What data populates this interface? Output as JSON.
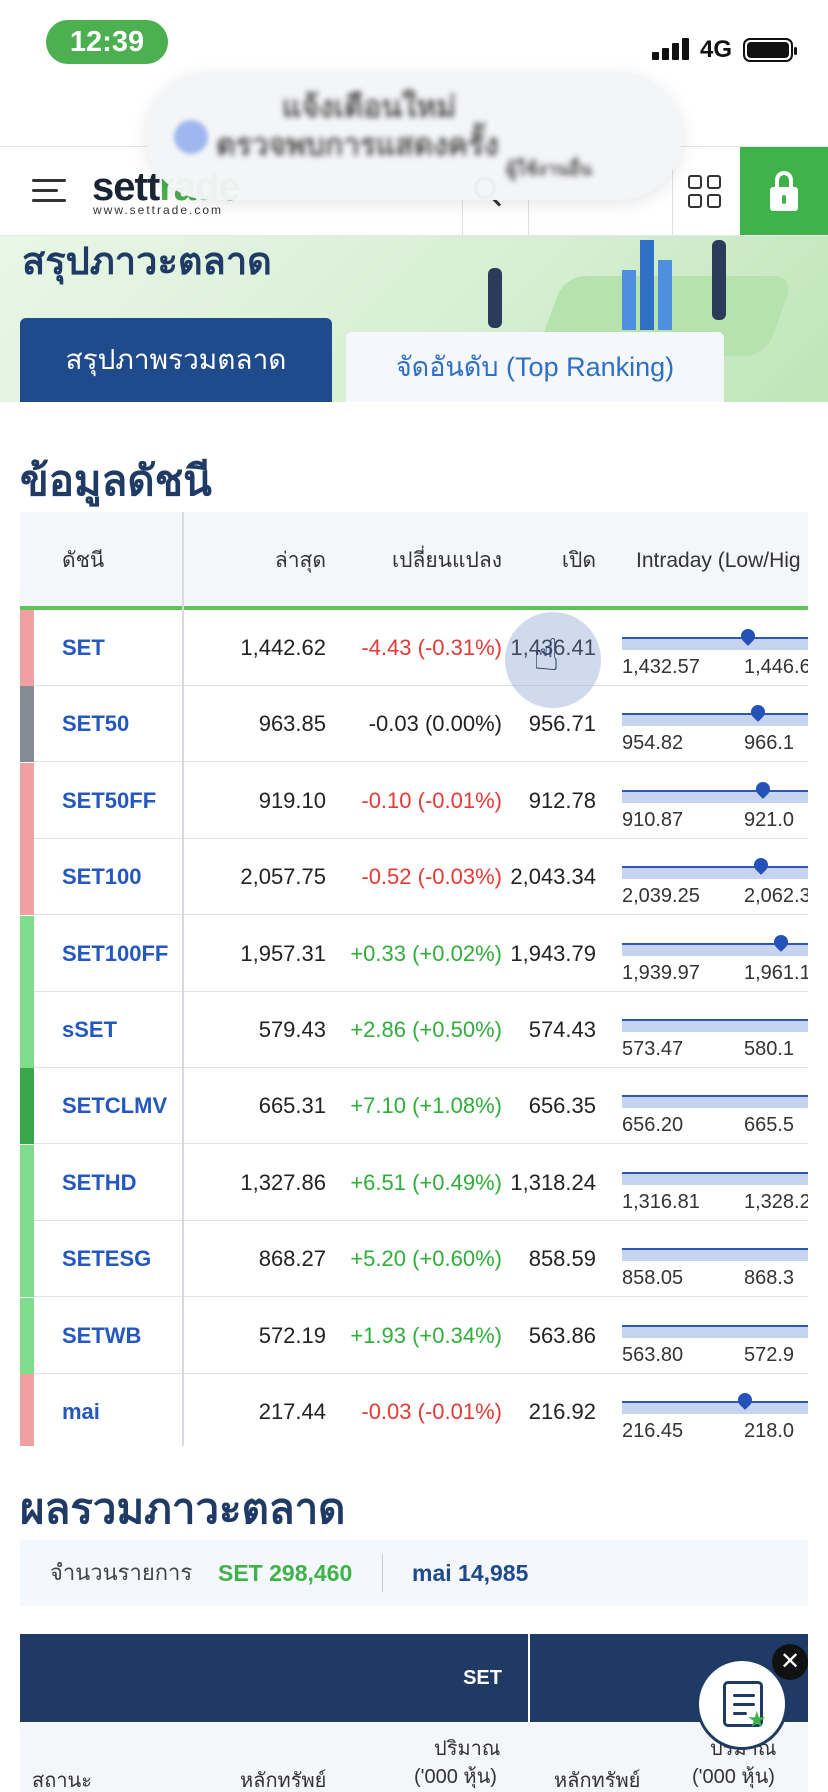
{
  "status_bar": {
    "time": "12:39",
    "network": "4G"
  },
  "header": {
    "logo_main": "sett",
    "logo_accent": "rade",
    "logo_sub": "www.settrade.com"
  },
  "notification": {
    "line1": "แจ้งเตือนใหม่",
    "line2": "ตรวจพบการแสดงครั้ง",
    "line3": "ผู้ใช้งานอื่น"
  },
  "hero": {
    "title": "สรุปภาวะตลาด",
    "tab_active": "สรุปภาพรวมตลาด",
    "tab_inactive": "จัดอันดับ (Top Ranking)"
  },
  "index_section": {
    "title": "ข้อมูลดัชนี",
    "columns": [
      "ดัชนี",
      "ล่าสุด",
      "เปลี่ยนแปลง",
      "เปิด",
      "Intraday (Low/Hig"
    ],
    "rows": [
      {
        "name": "SET",
        "last": "1,442.62",
        "change": "-4.43 (-0.31%)",
        "open": "1,436.41",
        "low": "1,432.57",
        "high": "1,446.6",
        "trend": "down",
        "position": 0.72
      },
      {
        "name": "SET50",
        "last": "963.85",
        "change": "-0.03 (0.00%)",
        "open": "956.71",
        "low": "954.82",
        "high": "966.1",
        "trend": "flat",
        "position": 0.78
      },
      {
        "name": "SET50FF",
        "last": "919.10",
        "change": "-0.10 (-0.01%)",
        "open": "912.78",
        "low": "910.87",
        "high": "921.0",
        "trend": "down",
        "position": 0.81
      },
      {
        "name": "SET100",
        "last": "2,057.75",
        "change": "-0.52 (-0.03%)",
        "open": "2,043.34",
        "low": "2,039.25",
        "high": "2,062.3",
        "trend": "down",
        "position": 0.8
      },
      {
        "name": "SET100FF",
        "last": "1,957.31",
        "change": "+0.33 (+0.02%)",
        "open": "1,943.79",
        "low": "1,939.97",
        "high": "1,961.1",
        "trend": "up",
        "position": 0.92
      },
      {
        "name": "sSET",
        "last": "579.43",
        "change": "+2.86 (+0.50%)",
        "open": "574.43",
        "low": "573.47",
        "high": "580.1",
        "trend": "up",
        "position": 1.0
      },
      {
        "name": "SETCLMV",
        "last": "665.31",
        "change": "+7.10 (+1.08%)",
        "open": "656.35",
        "low": "656.20",
        "high": "665.5",
        "trend": "up-strong",
        "position": 1.0
      },
      {
        "name": "SETHD",
        "last": "1,327.86",
        "change": "+6.51 (+0.49%)",
        "open": "1,318.24",
        "low": "1,316.81",
        "high": "1,328.2",
        "trend": "up",
        "position": 1.0
      },
      {
        "name": "SETESG",
        "last": "868.27",
        "change": "+5.20 (+0.60%)",
        "open": "858.59",
        "low": "858.05",
        "high": "868.3",
        "trend": "up",
        "position": 1.0
      },
      {
        "name": "SETWB",
        "last": "572.19",
        "change": "+1.93 (+0.34%)",
        "open": "563.86",
        "low": "563.80",
        "high": "572.9",
        "trend": "up",
        "position": 1.0
      },
      {
        "name": "mai",
        "last": "217.44",
        "change": "-0.03 (-0.01%)",
        "open": "216.92",
        "low": "216.45",
        "high": "218.0",
        "trend": "down",
        "position": 0.7
      }
    ]
  },
  "market_summary": {
    "title": "ผลรวมภาวะตลาด",
    "txn_label": "จำนวนรายการ",
    "txn_set": "SET 298,460",
    "txn_mai": "mai 14,985",
    "table_header_set": "SET",
    "sub_status": "สถานะ",
    "sub_securities": "หลักทรัพย์",
    "sub_volume_1": "ปริมาณ",
    "sub_volume_2": "('000 หุ้น)"
  },
  "colors": {
    "up": "#2fae3a",
    "down": "#e53935",
    "flat": "#222222",
    "strip_up": "#7fdc8a",
    "strip_up_strong": "#3aa64a",
    "strip_down": "#f0a0a0",
    "strip_flat": "#868b93"
  }
}
